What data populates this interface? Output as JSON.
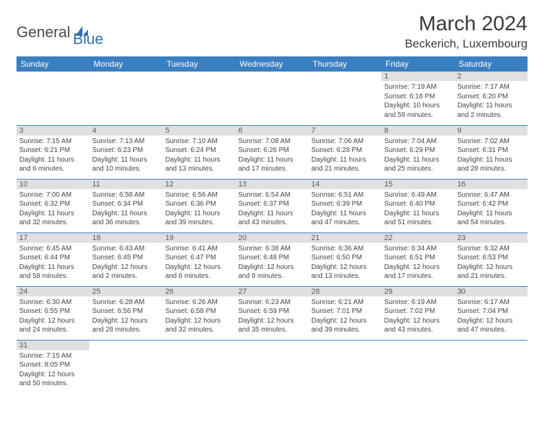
{
  "logo": {
    "part1": "General",
    "part2": "Blue"
  },
  "title": "March 2024",
  "location": "Beckerich, Luxembourg",
  "colors": {
    "header_bg": "#3a7fc0",
    "header_text": "#ffffff",
    "daynum_bg": "#e0e0e0",
    "daynum_text": "#595959",
    "border": "#3a7fc0",
    "logo_blue": "#2d6fb0"
  },
  "dayNames": [
    "Sunday",
    "Monday",
    "Tuesday",
    "Wednesday",
    "Thursday",
    "Friday",
    "Saturday"
  ],
  "weeks": [
    [
      null,
      null,
      null,
      null,
      null,
      {
        "n": "1",
        "sr": "7:19 AM",
        "ss": "6:18 PM",
        "dl": "10 hours and 59 minutes."
      },
      {
        "n": "2",
        "sr": "7:17 AM",
        "ss": "6:20 PM",
        "dl": "11 hours and 2 minutes."
      }
    ],
    [
      {
        "n": "3",
        "sr": "7:15 AM",
        "ss": "6:21 PM",
        "dl": "11 hours and 6 minutes."
      },
      {
        "n": "4",
        "sr": "7:13 AM",
        "ss": "6:23 PM",
        "dl": "11 hours and 10 minutes."
      },
      {
        "n": "5",
        "sr": "7:10 AM",
        "ss": "6:24 PM",
        "dl": "11 hours and 13 minutes."
      },
      {
        "n": "6",
        "sr": "7:08 AM",
        "ss": "6:26 PM",
        "dl": "11 hours and 17 minutes."
      },
      {
        "n": "7",
        "sr": "7:06 AM",
        "ss": "6:28 PM",
        "dl": "11 hours and 21 minutes."
      },
      {
        "n": "8",
        "sr": "7:04 AM",
        "ss": "6:29 PM",
        "dl": "11 hours and 25 minutes."
      },
      {
        "n": "9",
        "sr": "7:02 AM",
        "ss": "6:31 PM",
        "dl": "11 hours and 28 minutes."
      }
    ],
    [
      {
        "n": "10",
        "sr": "7:00 AM",
        "ss": "6:32 PM",
        "dl": "11 hours and 32 minutes."
      },
      {
        "n": "11",
        "sr": "6:58 AM",
        "ss": "6:34 PM",
        "dl": "11 hours and 36 minutes."
      },
      {
        "n": "12",
        "sr": "6:56 AM",
        "ss": "6:36 PM",
        "dl": "11 hours and 39 minutes."
      },
      {
        "n": "13",
        "sr": "6:54 AM",
        "ss": "6:37 PM",
        "dl": "11 hours and 43 minutes."
      },
      {
        "n": "14",
        "sr": "6:51 AM",
        "ss": "6:39 PM",
        "dl": "11 hours and 47 minutes."
      },
      {
        "n": "15",
        "sr": "6:49 AM",
        "ss": "6:40 PM",
        "dl": "11 hours and 51 minutes."
      },
      {
        "n": "16",
        "sr": "6:47 AM",
        "ss": "6:42 PM",
        "dl": "11 hours and 54 minutes."
      }
    ],
    [
      {
        "n": "17",
        "sr": "6:45 AM",
        "ss": "6:44 PM",
        "dl": "11 hours and 58 minutes."
      },
      {
        "n": "18",
        "sr": "6:43 AM",
        "ss": "6:45 PM",
        "dl": "12 hours and 2 minutes."
      },
      {
        "n": "19",
        "sr": "6:41 AM",
        "ss": "6:47 PM",
        "dl": "12 hours and 6 minutes."
      },
      {
        "n": "20",
        "sr": "6:38 AM",
        "ss": "6:48 PM",
        "dl": "12 hours and 9 minutes."
      },
      {
        "n": "21",
        "sr": "6:36 AM",
        "ss": "6:50 PM",
        "dl": "12 hours and 13 minutes."
      },
      {
        "n": "22",
        "sr": "6:34 AM",
        "ss": "6:51 PM",
        "dl": "12 hours and 17 minutes."
      },
      {
        "n": "23",
        "sr": "6:32 AM",
        "ss": "6:53 PM",
        "dl": "12 hours and 21 minutes."
      }
    ],
    [
      {
        "n": "24",
        "sr": "6:30 AM",
        "ss": "6:55 PM",
        "dl": "12 hours and 24 minutes."
      },
      {
        "n": "25",
        "sr": "6:28 AM",
        "ss": "6:56 PM",
        "dl": "12 hours and 28 minutes."
      },
      {
        "n": "26",
        "sr": "6:26 AM",
        "ss": "6:58 PM",
        "dl": "12 hours and 32 minutes."
      },
      {
        "n": "27",
        "sr": "6:23 AM",
        "ss": "6:59 PM",
        "dl": "12 hours and 35 minutes."
      },
      {
        "n": "28",
        "sr": "6:21 AM",
        "ss": "7:01 PM",
        "dl": "12 hours and 39 minutes."
      },
      {
        "n": "29",
        "sr": "6:19 AM",
        "ss": "7:02 PM",
        "dl": "12 hours and 43 minutes."
      },
      {
        "n": "30",
        "sr": "6:17 AM",
        "ss": "7:04 PM",
        "dl": "12 hours and 47 minutes."
      }
    ],
    [
      {
        "n": "31",
        "sr": "7:15 AM",
        "ss": "8:05 PM",
        "dl": "12 hours and 50 minutes."
      },
      null,
      null,
      null,
      null,
      null,
      null
    ]
  ],
  "labels": {
    "sunrise": "Sunrise:",
    "sunset": "Sunset:",
    "daylight": "Daylight:"
  }
}
